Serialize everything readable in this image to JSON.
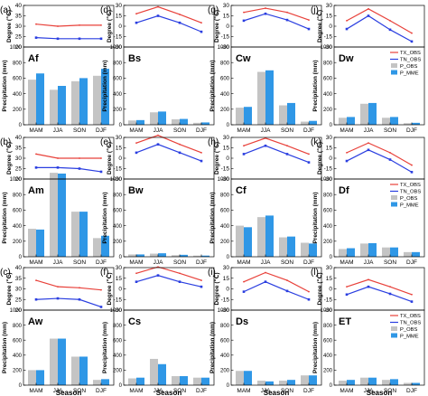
{
  "figure": {
    "row_ylabel_top": "Degree (℃)",
    "row_ylabel_bottom": "Precipitation (mm)",
    "xlabel": "Season",
    "seasons": [
      "MAM",
      "JJA",
      "SON",
      "DJF"
    ]
  },
  "legend": {
    "entries": [
      {
        "label": "TX_OBS",
        "kind": "line",
        "color": "#e8413a"
      },
      {
        "label": "TN_OBS",
        "kind": "line",
        "color": "#2a3ee0"
      },
      {
        "label": "P_OBS",
        "kind": "bar",
        "color": "#c4c4c4"
      },
      {
        "label": "P_MME",
        "kind": "bar",
        "color": "#2f97e6"
      }
    ]
  },
  "colors": {
    "tx": "#e8413a",
    "tn": "#2a3ee0",
    "p_obs": "#c4c4c4",
    "p_mme": "#2f97e6"
  },
  "chart_data": [
    {
      "type": "line+bar",
      "panel": "(a)",
      "climate": "Af",
      "temp_ylim": [
        20,
        40
      ],
      "temp_ticks": [
        20,
        25,
        30,
        35,
        40
      ],
      "precip_ylim": [
        0,
        1000
      ],
      "precip_ticks": [
        0,
        200,
        400,
        600,
        800,
        1000
      ],
      "seasons": [
        "MAM",
        "JJA",
        "SON",
        "DJF"
      ],
      "series": [
        {
          "name": "TX_OBS",
          "values": [
            31,
            30,
            30.5,
            30.5
          ]
        },
        {
          "name": "TN_OBS",
          "values": [
            24.5,
            24,
            24,
            24
          ]
        },
        {
          "name": "P_OBS",
          "values": [
            580,
            450,
            560,
            630
          ]
        },
        {
          "name": "P_MME",
          "values": [
            660,
            500,
            600,
            720
          ]
        }
      ]
    },
    {
      "type": "line+bar",
      "panel": "(d)",
      "climate": "Bs",
      "temp_ylim": [
        -30,
        30
      ],
      "temp_ticks": [
        -30,
        -15,
        0,
        15,
        30
      ],
      "precip_ylim": [
        0,
        1000
      ],
      "precip_ticks": [
        0,
        200,
        400,
        600,
        800,
        1000
      ],
      "seasons": [
        "MAM",
        "JJA",
        "SON",
        "DJF"
      ],
      "series": [
        {
          "name": "TX_OBS",
          "values": [
            18,
            28,
            17,
            5
          ]
        },
        {
          "name": "TN_OBS",
          "values": [
            5,
            15,
            5,
            -8
          ]
        },
        {
          "name": "P_OBS",
          "values": [
            55,
            160,
            70,
            25
          ]
        },
        {
          "name": "P_MME",
          "values": [
            60,
            170,
            75,
            30
          ]
        }
      ]
    },
    {
      "type": "line+bar",
      "panel": "(g)",
      "climate": "Cw",
      "temp_ylim": [
        -30,
        30
      ],
      "temp_ticks": [
        -30,
        -15,
        0,
        15,
        30
      ],
      "precip_ylim": [
        0,
        1000
      ],
      "precip_ticks": [
        0,
        200,
        400,
        600,
        800,
        1000
      ],
      "seasons": [
        "MAM",
        "JJA",
        "SON",
        "DJF"
      ],
      "series": [
        {
          "name": "TX_OBS",
          "values": [
            20,
            26,
            20,
            9
          ]
        },
        {
          "name": "TN_OBS",
          "values": [
            8,
            18,
            9,
            -4
          ]
        },
        {
          "name": "P_OBS",
          "values": [
            220,
            680,
            250,
            40
          ]
        },
        {
          "name": "P_MME",
          "values": [
            230,
            700,
            280,
            50
          ]
        }
      ]
    },
    {
      "type": "line+bar",
      "panel": "(j)",
      "climate": "Dw",
      "temp_ylim": [
        -30,
        30
      ],
      "temp_ticks": [
        -30,
        -15,
        0,
        15,
        30
      ],
      "precip_ylim": [
        0,
        1000
      ],
      "precip_ticks": [
        0,
        200,
        400,
        600,
        800,
        1000
      ],
      "seasons": [
        "MAM",
        "JJA",
        "SON",
        "DJF"
      ],
      "series": [
        {
          "name": "TX_OBS",
          "values": [
            8,
            25,
            8,
            -10
          ]
        },
        {
          "name": "TN_OBS",
          "values": [
            -4,
            15,
            -5,
            -22
          ]
        },
        {
          "name": "P_OBS",
          "values": [
            90,
            270,
            90,
            20
          ]
        },
        {
          "name": "P_MME",
          "values": [
            100,
            280,
            100,
            25
          ]
        }
      ]
    },
    {
      "type": "line+bar",
      "panel": "(b)",
      "climate": "Am",
      "temp_ylim": [
        20,
        40
      ],
      "temp_ticks": [
        20,
        25,
        30,
        35,
        40
      ],
      "precip_ylim": [
        0,
        1000
      ],
      "precip_ticks": [
        0,
        200,
        400,
        600,
        800,
        1000
      ],
      "seasons": [
        "MAM",
        "JJA",
        "SON",
        "DJF"
      ],
      "series": [
        {
          "name": "TX_OBS",
          "values": [
            32,
            30,
            30,
            30
          ]
        },
        {
          "name": "TN_OBS",
          "values": [
            25.5,
            25.5,
            25,
            23.5
          ]
        },
        {
          "name": "P_OBS",
          "values": [
            360,
            1080,
            580,
            240
          ]
        },
        {
          "name": "P_MME",
          "values": [
            350,
            1070,
            580,
            270
          ]
        }
      ]
    },
    {
      "type": "line+bar",
      "panel": "(e)",
      "climate": "Bw",
      "temp_ylim": [
        -30,
        30
      ],
      "temp_ticks": [
        -30,
        -15,
        0,
        15,
        30
      ],
      "precip_ylim": [
        0,
        1000
      ],
      "precip_ticks": [
        0,
        200,
        400,
        600,
        800,
        1000
      ],
      "seasons": [
        "MAM",
        "JJA",
        "SON",
        "DJF"
      ],
      "series": [
        {
          "name": "TX_OBS",
          "values": [
            22,
            33,
            20,
            8
          ]
        },
        {
          "name": "TN_OBS",
          "values": [
            8,
            20,
            8,
            -4
          ]
        },
        {
          "name": "P_OBS",
          "values": [
            30,
            40,
            20,
            15
          ]
        },
        {
          "name": "P_MME",
          "values": [
            30,
            45,
            25,
            15
          ]
        }
      ]
    },
    {
      "type": "line+bar",
      "panel": "(h)",
      "climate": "Cf",
      "temp_ylim": [
        -30,
        30
      ],
      "temp_ticks": [
        -30,
        -15,
        0,
        15,
        30
      ],
      "precip_ylim": [
        0,
        1000
      ],
      "precip_ticks": [
        0,
        200,
        400,
        600,
        800,
        1000
      ],
      "seasons": [
        "MAM",
        "JJA",
        "SON",
        "DJF"
      ],
      "series": [
        {
          "name": "TX_OBS",
          "values": [
            18,
            29,
            18,
            6
          ]
        },
        {
          "name": "TN_OBS",
          "values": [
            6,
            18,
            6,
            -6
          ]
        },
        {
          "name": "P_OBS",
          "values": [
            400,
            510,
            250,
            180
          ]
        },
        {
          "name": "P_MME",
          "values": [
            380,
            530,
            260,
            170
          ]
        }
      ]
    },
    {
      "type": "line+bar",
      "panel": "(k)",
      "climate": "Df",
      "temp_ylim": [
        -30,
        30
      ],
      "temp_ticks": [
        -30,
        -15,
        0,
        15,
        30
      ],
      "precip_ylim": [
        0,
        1000
      ],
      "precip_ticks": [
        0,
        200,
        400,
        600,
        800,
        1000
      ],
      "seasons": [
        "MAM",
        "JJA",
        "SON",
        "DJF"
      ],
      "series": [
        {
          "name": "TX_OBS",
          "values": [
            8,
            22,
            8,
            -10
          ]
        },
        {
          "name": "TN_OBS",
          "values": [
            -4,
            12,
            -2,
            -20
          ]
        },
        {
          "name": "P_OBS",
          "values": [
            100,
            170,
            120,
            60
          ]
        },
        {
          "name": "P_MME",
          "values": [
            110,
            175,
            120,
            60
          ]
        }
      ]
    },
    {
      "type": "line+bar",
      "panel": "(c)",
      "climate": "Aw",
      "temp_ylim": [
        20,
        40
      ],
      "temp_ticks": [
        20,
        25,
        30,
        35,
        40
      ],
      "precip_ylim": [
        0,
        1000
      ],
      "precip_ticks": [
        0,
        200,
        400,
        600,
        800,
        1000
      ],
      "seasons": [
        "MAM",
        "JJA",
        "SON",
        "DJF"
      ],
      "series": [
        {
          "name": "TX_OBS",
          "values": [
            34,
            31,
            30.5,
            29.5
          ]
        },
        {
          "name": "TN_OBS",
          "values": [
            25,
            25.5,
            25,
            21.5
          ]
        },
        {
          "name": "P_OBS",
          "values": [
            200,
            620,
            380,
            70
          ]
        },
        {
          "name": "P_MME",
          "values": [
            200,
            620,
            380,
            80
          ]
        }
      ]
    },
    {
      "type": "line+bar",
      "panel": "(f)",
      "climate": "Cs",
      "temp_ylim": [
        -30,
        30
      ],
      "temp_ticks": [
        -30,
        -15,
        0,
        15,
        30
      ],
      "precip_ylim": [
        0,
        1000
      ],
      "precip_ticks": [
        0,
        200,
        400,
        600,
        800,
        1000
      ],
      "seasons": [
        "MAM",
        "JJA",
        "SON",
        "DJF"
      ],
      "series": [
        {
          "name": "TX_OBS",
          "values": [
            22,
            31,
            22,
            12
          ]
        },
        {
          "name": "TN_OBS",
          "values": [
            10,
            19,
            10,
            3
          ]
        },
        {
          "name": "P_OBS",
          "values": [
            90,
            350,
            120,
            100
          ]
        },
        {
          "name": "P_MME",
          "values": [
            100,
            280,
            120,
            100
          ]
        }
      ]
    },
    {
      "type": "line+bar",
      "panel": "(i)",
      "climate": "Ds",
      "temp_ylim": [
        -30,
        30
      ],
      "temp_ticks": [
        -30,
        -15,
        0,
        15,
        30
      ],
      "precip_ylim": [
        0,
        1000
      ],
      "precip_ticks": [
        0,
        200,
        400,
        600,
        800,
        1000
      ],
      "seasons": [
        "MAM",
        "JJA",
        "SON",
        "DJF"
      ],
      "series": [
        {
          "name": "TX_OBS",
          "values": [
            10,
            23,
            12,
            -4
          ]
        },
        {
          "name": "TN_OBS",
          "values": [
            -4,
            10,
            -3,
            -15
          ]
        },
        {
          "name": "P_OBS",
          "values": [
            190,
            60,
            60,
            130
          ]
        },
        {
          "name": "P_MME",
          "values": [
            190,
            50,
            70,
            130
          ]
        }
      ]
    },
    {
      "type": "line+bar",
      "panel": "(l)",
      "climate": "ET",
      "temp_ylim": [
        -30,
        30
      ],
      "temp_ticks": [
        -30,
        -15,
        0,
        15,
        30
      ],
      "precip_ylim": [
        0,
        1000
      ],
      "precip_ticks": [
        0,
        200,
        400,
        600,
        800,
        1000
      ],
      "seasons": [
        "MAM",
        "JJA",
        "SON",
        "DJF"
      ],
      "series": [
        {
          "name": "TX_OBS",
          "values": [
            3,
            13,
            3,
            -8
          ]
        },
        {
          "name": "TN_OBS",
          "values": [
            -8,
            3,
            -7,
            -18
          ]
        },
        {
          "name": "P_OBS",
          "values": [
            60,
            100,
            70,
            30
          ]
        },
        {
          "name": "P_MME",
          "values": [
            70,
            100,
            80,
            30
          ]
        }
      ]
    }
  ]
}
